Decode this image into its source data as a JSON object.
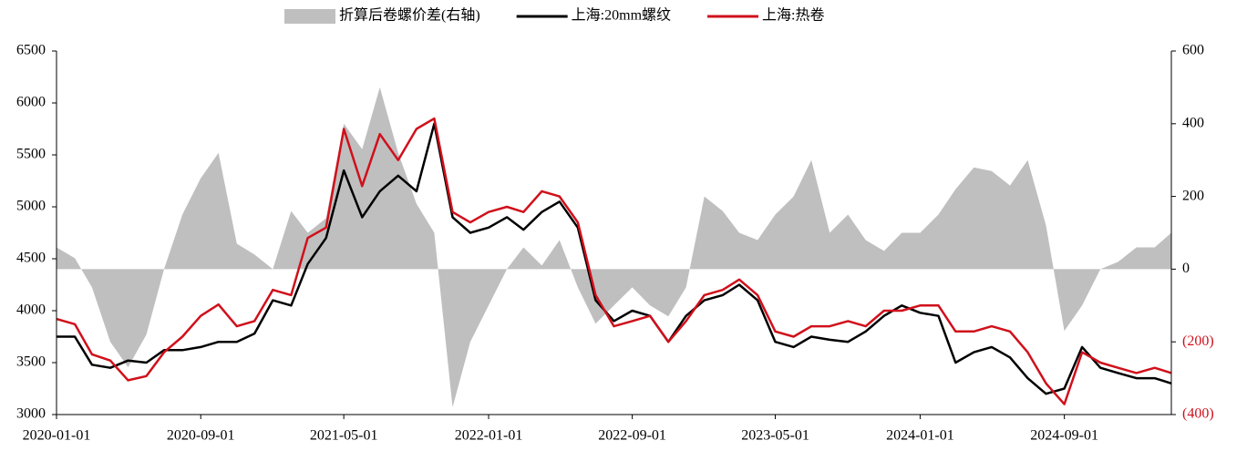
{
  "chart_data": {
    "type": "line",
    "x": [
      "2020-01-01",
      "2020-02-01",
      "2020-03-01",
      "2020-04-01",
      "2020-05-01",
      "2020-06-01",
      "2020-07-01",
      "2020-08-01",
      "2020-09-01",
      "2020-10-01",
      "2020-11-01",
      "2020-12-01",
      "2021-01-01",
      "2021-02-01",
      "2021-03-01",
      "2021-04-01",
      "2021-05-01",
      "2021-06-01",
      "2021-07-01",
      "2021-08-01",
      "2021-09-01",
      "2021-10-01",
      "2021-11-01",
      "2021-12-01",
      "2022-01-01",
      "2022-02-01",
      "2022-03-01",
      "2022-04-01",
      "2022-05-01",
      "2022-06-01",
      "2022-07-01",
      "2022-08-01",
      "2022-09-01",
      "2022-10-01",
      "2022-11-01",
      "2022-12-01",
      "2023-01-01",
      "2023-02-01",
      "2023-03-01",
      "2023-04-01",
      "2023-05-01",
      "2023-06-01",
      "2023-07-01",
      "2023-08-01",
      "2023-09-01",
      "2023-10-01",
      "2023-11-01",
      "2023-12-01",
      "2024-01-01",
      "2024-02-01",
      "2024-03-01",
      "2024-04-01",
      "2024-05-01",
      "2024-06-01",
      "2024-07-01",
      "2024-08-01",
      "2024-09-01",
      "2024-10-01",
      "2024-11-01",
      "2024-12-01",
      "2025-01-01",
      "2025-02-01",
      "2025-03-01"
    ],
    "series": [
      {
        "name": "折算后卷螺价差(右轴)",
        "color": "#bfbfbf",
        "kind": "area",
        "axis": "y2",
        "values": [
          60,
          30,
          -50,
          -200,
          -270,
          -180,
          0,
          150,
          250,
          320,
          70,
          40,
          0,
          160,
          100,
          140,
          400,
          330,
          500,
          320,
          180,
          100,
          -380,
          -200,
          -100,
          0,
          60,
          10,
          80,
          -50,
          -150,
          -100,
          -50,
          -100,
          -130,
          -50,
          200,
          160,
          100,
          80,
          150,
          200,
          300,
          100,
          150,
          80,
          50,
          100,
          100,
          150,
          220,
          280,
          270,
          230,
          300,
          120,
          -170,
          -100,
          0,
          20,
          60,
          60,
          100
        ]
      },
      {
        "name": "上海:20mm螺纹",
        "color": "#000000",
        "values": [
          3750,
          3750,
          3480,
          3450,
          3520,
          3500,
          3620,
          3620,
          3650,
          3700,
          3700,
          3780,
          4100,
          4050,
          4450,
          4700,
          5350,
          4900,
          5150,
          5300,
          5150,
          5800,
          4900,
          4750,
          4800,
          4900,
          4780,
          4950,
          5050,
          4800,
          4100,
          3900,
          4000,
          3950,
          3700,
          3950,
          4100,
          4150,
          4250,
          4100,
          3700,
          3650,
          3750,
          3720,
          3700,
          3800,
          3950,
          4050,
          3980,
          3950,
          3500,
          3600,
          3650,
          3550,
          3350,
          3200,
          3250,
          3650,
          3450,
          3400,
          3350,
          3350,
          3300
        ]
      },
      {
        "name": "上海:热卷",
        "color": "#d0101b",
        "values": [
          3920,
          3870,
          3580,
          3520,
          3330,
          3370,
          3600,
          3750,
          3950,
          4060,
          3850,
          3900,
          4200,
          4150,
          4700,
          4800,
          5750,
          5200,
          5700,
          5450,
          5750,
          5850,
          4950,
          4850,
          4950,
          5000,
          4950,
          5150,
          5100,
          4850,
          4150,
          3850,
          3900,
          3950,
          3700,
          3900,
          4150,
          4200,
          4300,
          4150,
          3800,
          3750,
          3850,
          3850,
          3900,
          3850,
          4000,
          4000,
          4050,
          4050,
          3800,
          3800,
          3850,
          3800,
          3600,
          3300,
          3100,
          3600,
          3500,
          3450,
          3400,
          3450,
          3400
        ]
      }
    ],
    "xlim": [
      "2020-01-01",
      "2025-03-01"
    ],
    "xticks": [
      "2020-01-01",
      "2020-09-01",
      "2021-05-01",
      "2022-01-01",
      "2022-09-01",
      "2023-05-01",
      "2024-01-01",
      "2024-09-01"
    ],
    "ylim": [
      3000,
      6500
    ],
    "yticks": [
      3000,
      3500,
      4000,
      4500,
      5000,
      5500,
      6000,
      6500
    ],
    "y2lim": [
      -400,
      600
    ],
    "y2ticks": [
      {
        "value": -400,
        "label": "(400)"
      },
      {
        "value": -200,
        "label": "(200)"
      },
      0,
      200,
      400,
      600
    ]
  }
}
